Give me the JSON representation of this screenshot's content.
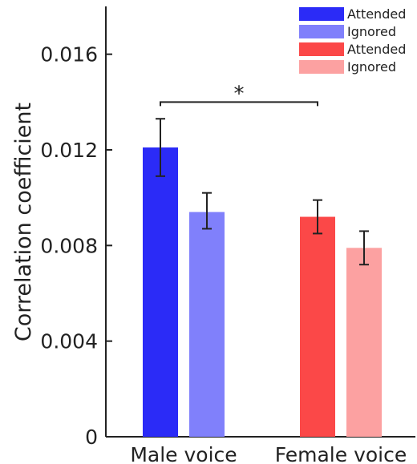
{
  "chart_data": {
    "type": "bar",
    "ylabel": "Correlation coefficient",
    "ylim": [
      0,
      0.018
    ],
    "yticks": [
      0,
      0.004,
      0.008,
      0.012,
      0.016
    ],
    "ytick_labels": [
      "0",
      "0.004",
      "0.008",
      "0.012",
      "0.016"
    ],
    "groups": [
      {
        "label": "Male voice",
        "bars": [
          {
            "name": "Attended",
            "value": 0.0121,
            "err_low": 0.0109,
            "err_high": 0.0133,
            "color": "#2b2bf7"
          },
          {
            "name": "Ignored",
            "value": 0.0094,
            "err_low": 0.0087,
            "err_high": 0.0102,
            "color": "#8080fb"
          }
        ]
      },
      {
        "label": "Female voice",
        "bars": [
          {
            "name": "Attended",
            "value": 0.0092,
            "err_low": 0.0085,
            "err_high": 0.0099,
            "color": "#fb4848"
          },
          {
            "name": "Ignored",
            "value": 0.0079,
            "err_low": 0.0072,
            "err_high": 0.0086,
            "color": "#fca1a1"
          }
        ]
      }
    ],
    "legend": {
      "position": "top-right",
      "entries": [
        {
          "label": "Attended",
          "color": "#2b2bf7"
        },
        {
          "label": "Ignored",
          "color": "#8080fb"
        },
        {
          "label": "Attended",
          "color": "#fb4848"
        },
        {
          "label": "Ignored",
          "color": "#fca1a1"
        }
      ]
    },
    "annotation": {
      "text": "*",
      "from_group": 0,
      "to_group": 1,
      "y": 0.014
    }
  }
}
